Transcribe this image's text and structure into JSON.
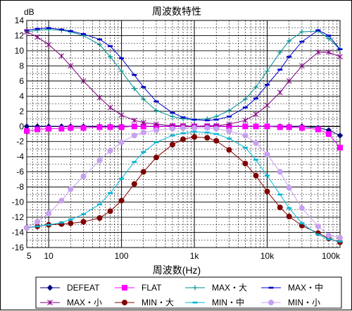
{
  "chart_data": {
    "type": "line",
    "title": "周波数特性",
    "xlabel": "周波数(Hz)",
    "ylabel": "dB",
    "x_scale": "log",
    "xlim": [
      5,
      100000
    ],
    "ylim": [
      -16,
      14
    ],
    "x_tick_labels": [
      {
        "value": 5,
        "label": "5"
      },
      {
        "value": 10,
        "label": "10"
      },
      {
        "value": 100,
        "label": "100"
      },
      {
        "value": 1000,
        "label": "1k"
      },
      {
        "value": 10000,
        "label": "10k"
      },
      {
        "value": 100000,
        "label": "100k"
      }
    ],
    "y_ticks": [
      14,
      12,
      10,
      8,
      6,
      4,
      2,
      0,
      -2,
      -4,
      -6,
      -8,
      -10,
      -12,
      -14,
      -16
    ],
    "y_tick_labels": [
      "14",
      "12",
      "10",
      "8",
      "6",
      "4",
      "2",
      "0",
      "-2",
      "-4",
      "-6",
      "-8",
      "-10",
      "-12",
      "-14",
      "-16"
    ],
    "grid": true,
    "legend_position": "bottom",
    "x": [
      5,
      7,
      10,
      15,
      20,
      30,
      50,
      70,
      100,
      150,
      200,
      300,
      500,
      700,
      1000,
      1500,
      2000,
      3000,
      5000,
      7000,
      10000,
      15000,
      20000,
      30000,
      50000,
      70000,
      100000
    ],
    "series": [
      {
        "name": "DEFEAT",
        "color": "#000080",
        "marker": "diamond",
        "values": [
          0,
          0,
          0,
          0,
          0,
          0,
          0,
          0,
          0,
          0,
          0,
          0,
          0,
          0,
          0,
          0,
          0,
          0,
          0,
          0,
          0,
          0,
          0,
          0,
          -0.2,
          -0.5,
          -1.2
        ]
      },
      {
        "name": "FLAT",
        "color": "#ff00ff",
        "marker": "square",
        "values": [
          -0.6,
          -0.4,
          -0.3,
          -0.3,
          -0.2,
          -0.2,
          -0.1,
          -0.1,
          -0.1,
          0,
          0,
          0,
          0,
          0,
          0,
          0,
          0,
          0,
          0,
          0,
          0,
          -0.1,
          -0.1,
          -0.2,
          -0.4,
          -1.0,
          -2.8
        ]
      },
      {
        "name": "MAX・大",
        "color": "#009090",
        "marker": "plus",
        "values": [
          12.5,
          12.7,
          12.8,
          12.7,
          12.5,
          12.0,
          10.8,
          9.2,
          7.3,
          5.0,
          3.6,
          2.1,
          1.3,
          1.0,
          0.9,
          1.0,
          1.3,
          2.1,
          3.6,
          5.2,
          7.3,
          9.8,
          11.3,
          12.5,
          12.6,
          11.6,
          10.2
        ]
      },
      {
        "name": "MAX・中",
        "color": "#0000cc",
        "marker": "dash",
        "values": [
          12.7,
          12.9,
          13.0,
          12.8,
          12.6,
          12.2,
          11.5,
          10.6,
          9.0,
          6.8,
          5.2,
          3.3,
          1.8,
          1.2,
          0.9,
          0.8,
          0.9,
          1.3,
          2.5,
          3.7,
          5.5,
          7.5,
          9.2,
          11.2,
          12.7,
          12.0,
          10.2
        ]
      },
      {
        "name": "MAX・小",
        "color": "#800080",
        "marker": "star",
        "values": [
          12.5,
          11.8,
          10.8,
          9.3,
          8.0,
          6.0,
          3.8,
          2.5,
          1.5,
          0.8,
          0.5,
          0.3,
          0.1,
          0.1,
          0,
          0.1,
          0.1,
          0.3,
          0.8,
          1.6,
          2.8,
          4.5,
          6.0,
          8.0,
          9.8,
          9.8,
          9.2
        ]
      },
      {
        "name": "MIN・大",
        "color": "#800000",
        "marker": "circle",
        "values": [
          -13.4,
          -13.2,
          -13.0,
          -12.9,
          -12.8,
          -12.6,
          -12.1,
          -11.2,
          -9.8,
          -7.6,
          -6.0,
          -4.1,
          -2.4,
          -1.7,
          -1.4,
          -1.5,
          -1.9,
          -3.1,
          -4.9,
          -6.5,
          -8.6,
          -10.7,
          -11.9,
          -13.1,
          -14.1,
          -14.8,
          -15.3
        ]
      },
      {
        "name": "MIN・中",
        "color": "#00b8d8",
        "marker": "dash",
        "values": [
          -13.4,
          -13.2,
          -13.0,
          -12.7,
          -12.3,
          -11.6,
          -10.3,
          -8.8,
          -6.9,
          -4.7,
          -3.4,
          -2.1,
          -1.2,
          -0.9,
          -0.7,
          -0.8,
          -1.0,
          -1.6,
          -2.8,
          -4.4,
          -6.5,
          -9.0,
          -10.8,
          -12.8,
          -14.3,
          -14.9,
          -15.2
        ]
      },
      {
        "name": "MIN・小",
        "color": "#c8a0f0",
        "marker": "circle",
        "values": [
          -13.4,
          -12.6,
          -11.5,
          -9.8,
          -8.3,
          -6.6,
          -4.5,
          -3.2,
          -2.1,
          -1.2,
          -0.8,
          -0.5,
          -0.3,
          -0.2,
          -0.2,
          -0.2,
          -0.3,
          -0.6,
          -1.2,
          -2.2,
          -3.7,
          -6.0,
          -8.1,
          -10.8,
          -13.2,
          -14.4,
          -14.7
        ]
      }
    ]
  }
}
